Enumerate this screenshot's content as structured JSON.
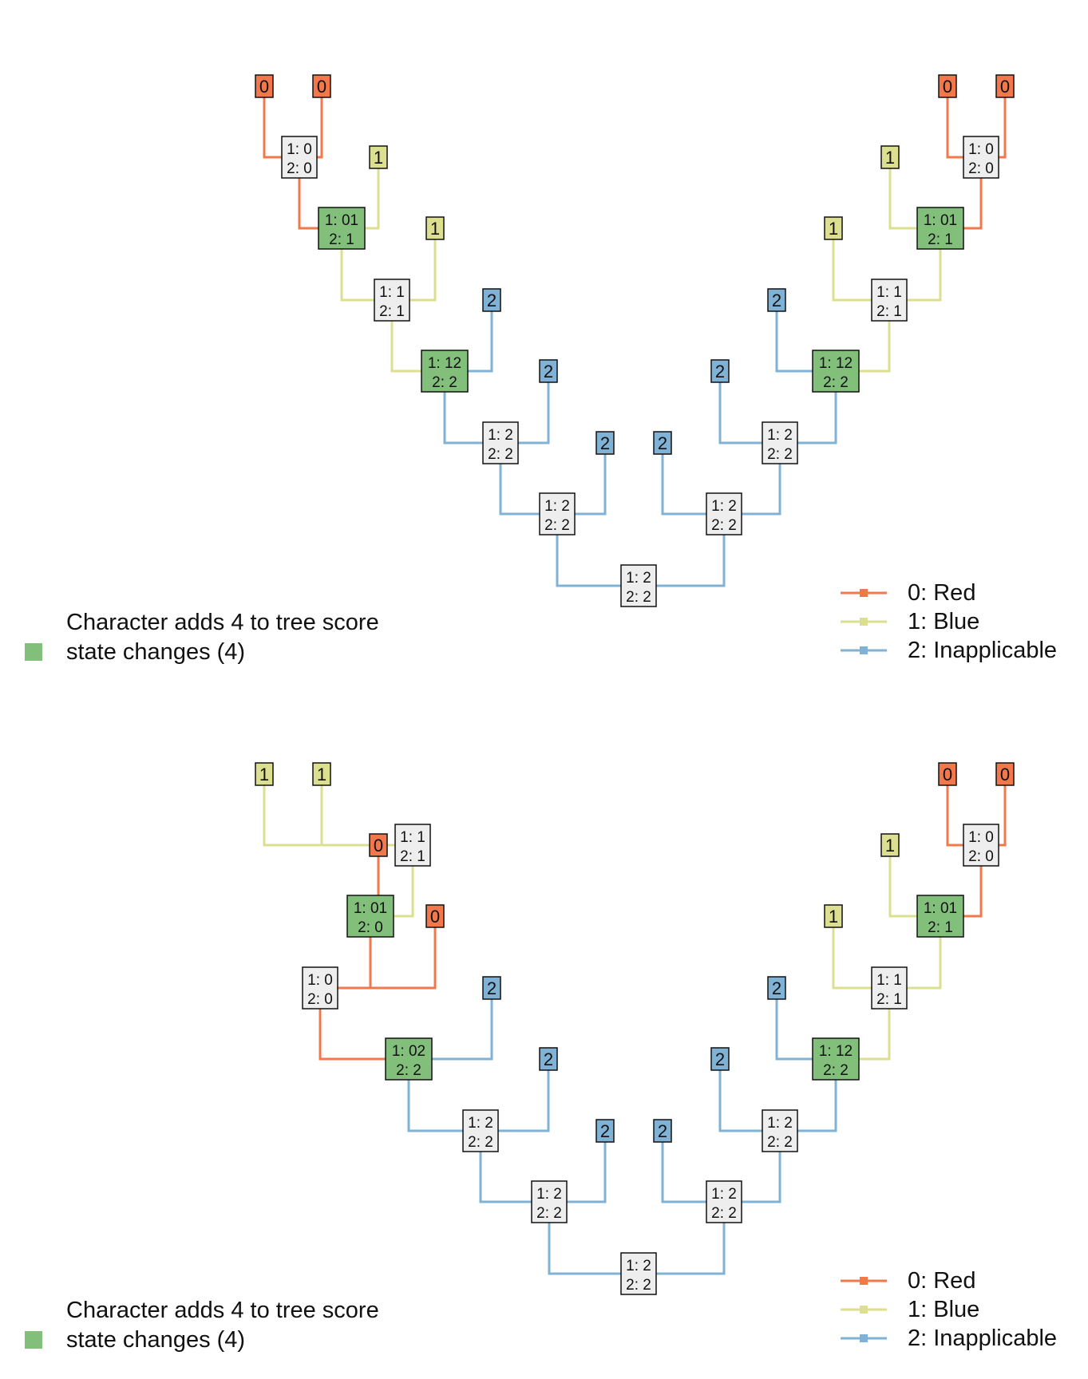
{
  "colors": {
    "red": "#F2774B",
    "blue": "#DCDF8F",
    "inapplicable": "#7FB2D5",
    "change": "#82BF7A",
    "neutral": "#EEEEEE",
    "border": "#111111"
  },
  "panels": [
    {
      "score_line1": "Character adds 4 to tree score",
      "score_line2": "state changes (4)",
      "legend": [
        "0: Red",
        "1: Blue",
        "2: Inapplicable"
      ],
      "tips": [
        "0",
        "0",
        "1",
        "1",
        "2",
        "2",
        "2",
        "2",
        "2",
        "2",
        "1",
        "1",
        "0",
        "0"
      ],
      "nodes": [
        {
          "l1": "1: 0",
          "l2": "2: 0",
          "change": false
        },
        {
          "l1": "1: 01",
          "l2": "2: 1",
          "change": true
        },
        {
          "l1": "1: 1",
          "l2": "2: 1",
          "change": false
        },
        {
          "l1": "1: 12",
          "l2": "2: 2",
          "change": true
        },
        {
          "l1": "1: 2",
          "l2": "2: 2",
          "change": false
        },
        {
          "l1": "1: 2",
          "l2": "2: 2",
          "change": false
        },
        {
          "l1": "1: 2",
          "l2": "2: 2",
          "change": false
        },
        {
          "l1": "1: 2",
          "l2": "2: 2",
          "change": false
        },
        {
          "l1": "1: 2",
          "l2": "2: 2",
          "change": false
        },
        {
          "l1": "1: 12",
          "l2": "2: 2",
          "change": true
        },
        {
          "l1": "1: 1",
          "l2": "2: 1",
          "change": false
        },
        {
          "l1": "1: 01",
          "l2": "2: 1",
          "change": true
        },
        {
          "l1": "1: 0",
          "l2": "2: 0",
          "change": false
        }
      ]
    },
    {
      "score_line1": "Character adds 4 to tree score",
      "score_line2": "state changes (4)",
      "legend": [
        "0: Red",
        "1: Blue",
        "2: Inapplicable"
      ],
      "tips": [
        "1",
        "1",
        "0",
        "0",
        "2",
        "2",
        "2",
        "2",
        "2",
        "2",
        "1",
        "1",
        "0",
        "0"
      ],
      "nodes": [
        {
          "l1": "1: 1",
          "l2": "2: 1",
          "change": false
        },
        {
          "l1": "1: 01",
          "l2": "2: 0",
          "change": true
        },
        {
          "l1": "1: 0",
          "l2": "2: 0",
          "change": false
        },
        {
          "l1": "1: 02",
          "l2": "2: 2",
          "change": true
        },
        {
          "l1": "1: 2",
          "l2": "2: 2",
          "change": false
        },
        {
          "l1": "1: 2",
          "l2": "2: 2",
          "change": false
        },
        {
          "l1": "1: 2",
          "l2": "2: 2",
          "change": false
        },
        {
          "l1": "1: 2",
          "l2": "2: 2",
          "change": false
        },
        {
          "l1": "1: 2",
          "l2": "2: 2",
          "change": false
        },
        {
          "l1": "1: 12",
          "l2": "2: 2",
          "change": true
        },
        {
          "l1": "1: 1",
          "l2": "2: 1",
          "change": false
        },
        {
          "l1": "1: 01",
          "l2": "2: 1",
          "change": true
        },
        {
          "l1": "1: 0",
          "l2": "2: 0",
          "change": false
        }
      ]
    }
  ]
}
